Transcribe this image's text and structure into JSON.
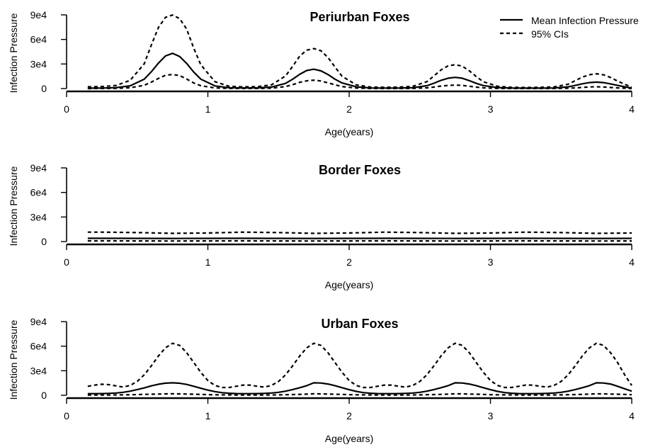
{
  "legend": {
    "position": "top-right",
    "entries": [
      {
        "label": "Mean Infection Pressure",
        "style": "solid"
      },
      {
        "label": "95% CIs",
        "style": "dashed"
      }
    ]
  },
  "chart_data": [
    {
      "type": "line",
      "title": "Periurban Foxes",
      "xlabel": "Age(years)",
      "ylabel": "Infection Pressure",
      "xlim": [
        0,
        4
      ],
      "ylim": [
        0,
        90000
      ],
      "xticks": [
        "0",
        "1",
        "2",
        "3",
        "4"
      ],
      "yticks": [
        "0",
        "3e4",
        "6e4",
        "9e4"
      ],
      "grid": false,
      "x": [
        0.15,
        0.25,
        0.35,
        0.45,
        0.55,
        0.6,
        0.65,
        0.7,
        0.75,
        0.8,
        0.85,
        0.9,
        0.95,
        1.05,
        1.15,
        1.25,
        1.35,
        1.45,
        1.55,
        1.6,
        1.65,
        1.7,
        1.75,
        1.8,
        1.85,
        1.9,
        1.95,
        2.05,
        2.15,
        2.25,
        2.35,
        2.45,
        2.55,
        2.6,
        2.65,
        2.7,
        2.75,
        2.8,
        2.85,
        2.9,
        2.95,
        3.05,
        3.15,
        3.25,
        3.35,
        3.45,
        3.55,
        3.6,
        3.65,
        3.7,
        3.75,
        3.8,
        3.85,
        3.9,
        3.95,
        4.0
      ],
      "series": [
        {
          "name": "Mean Infection Pressure",
          "style": "solid",
          "values": [
            500,
            600,
            1100,
            3400,
            11500,
            20500,
            31100,
            39800,
            43000,
            39200,
            30600,
            20100,
            11500,
            3200,
            1000,
            800,
            900,
            1800,
            6300,
            11400,
            17400,
            22100,
            23600,
            21600,
            17100,
            11400,
            6800,
            2100,
            700,
            600,
            600,
            1000,
            3500,
            6500,
            10000,
            12600,
            13700,
            12600,
            9700,
            6300,
            3600,
            1200,
            600,
            500,
            500,
            700,
            2100,
            3800,
            5800,
            7300,
            7900,
            7300,
            5700,
            3800,
            2200,
            700
          ]
        },
        {
          "name": "95% CIs",
          "style": "dashed",
          "values": [
            2200,
            2400,
            3700,
            10000,
            30300,
            53200,
            74600,
            87000,
            89800,
            85500,
            72500,
            49200,
            29100,
            8400,
            2800,
            2100,
            2300,
            4500,
            15400,
            27100,
            39700,
            46900,
            48800,
            46200,
            37900,
            26300,
            15000,
            4500,
            1800,
            1600,
            1700,
            2800,
            8400,
            15400,
            22800,
            27800,
            29200,
            27400,
            21700,
            14600,
            8300,
            2800,
            1500,
            1300,
            1500,
            2000,
            5300,
            9700,
            13900,
            16900,
            18100,
            16800,
            13500,
            9200,
            5300,
            1700
          ]
        },
        {
          "name": "95% CIs",
          "style": "dashed",
          "values": [
            0,
            100,
            300,
            1000,
            4000,
            7900,
            12400,
            16200,
            17200,
            15800,
            11600,
            6800,
            3500,
            800,
            200,
            200,
            200,
            400,
            2400,
            4700,
            7600,
            9400,
            10200,
            9300,
            6900,
            4700,
            2400,
            600,
            100,
            100,
            100,
            200,
            900,
            1800,
            3000,
            3800,
            4200,
            3900,
            2800,
            1700,
            900,
            200,
            100,
            100,
            100,
            100,
            400,
            800,
            1400,
            2000,
            2200,
            1900,
            1300,
            800,
            400,
            100
          ]
        }
      ]
    },
    {
      "type": "line",
      "title": "Border Foxes",
      "xlabel": "Age(years)",
      "ylabel": "Infection Pressure",
      "xlim": [
        0,
        4
      ],
      "ylim": [
        0,
        90000
      ],
      "xticks": [
        "0",
        "1",
        "2",
        "3",
        "4"
      ],
      "yticks": [
        "0",
        "3e4",
        "6e4",
        "9e4"
      ],
      "grid": false,
      "x": [
        0.15,
        0.25,
        0.5,
        0.75,
        1.0,
        1.25,
        1.5,
        1.75,
        2.0,
        2.25,
        2.5,
        2.75,
        3.0,
        3.25,
        3.5,
        3.75,
        4.0
      ],
      "series": [
        {
          "name": "Mean Infection Pressure",
          "style": "solid",
          "values": [
            4000,
            4000,
            3900,
            3800,
            3900,
            4000,
            3900,
            3800,
            3900,
            4000,
            3900,
            3800,
            3900,
            4000,
            3900,
            3800,
            3900
          ]
        },
        {
          "name": "95% CIs",
          "style": "dashed",
          "values": [
            11500,
            11500,
            11000,
            10000,
            10500,
            11500,
            11000,
            10000,
            10500,
            11500,
            11000,
            10000,
            10500,
            11500,
            11000,
            10000,
            10500
          ]
        },
        {
          "name": "95% CIs",
          "style": "dashed",
          "values": [
            900,
            900,
            800,
            700,
            800,
            900,
            800,
            700,
            800,
            900,
            800,
            700,
            800,
            900,
            800,
            700,
            800
          ]
        }
      ]
    },
    {
      "type": "line",
      "title": "Urban Foxes",
      "xlabel": "Age(years)",
      "ylabel": "Infection Pressure",
      "xlim": [
        0,
        4
      ],
      "ylim": [
        0,
        90000
      ],
      "xticks": [
        "0",
        "1",
        "2",
        "3",
        "4"
      ],
      "yticks": [
        "0",
        "3e4",
        "6e4",
        "9e4"
      ],
      "grid": false,
      "x": [
        0.15,
        0.2,
        0.25,
        0.3,
        0.35,
        0.4,
        0.45,
        0.5,
        0.55,
        0.6,
        0.65,
        0.7,
        0.75,
        0.8,
        0.85,
        0.9,
        0.95,
        1.0,
        1.05,
        1.1,
        1.15,
        1.2,
        1.25,
        1.3,
        1.35,
        1.4,
        1.45,
        1.5,
        1.55,
        1.6,
        1.65,
        1.7,
        1.75,
        1.8,
        1.85,
        1.9,
        1.95,
        2.0,
        2.05,
        2.1,
        2.15,
        2.2,
        2.25,
        2.3,
        2.35,
        2.4,
        2.45,
        2.5,
        2.55,
        2.6,
        2.65,
        2.7,
        2.75,
        2.8,
        2.85,
        2.9,
        2.95,
        3.0,
        3.05,
        3.1,
        3.15,
        3.2,
        3.25,
        3.3,
        3.35,
        3.4,
        3.45,
        3.5,
        3.55,
        3.6,
        3.65,
        3.7,
        3.75,
        3.8,
        3.85,
        3.9,
        3.95,
        4.0
      ],
      "series": [
        {
          "name": "Mean Infection Pressure",
          "style": "solid",
          "values": [
            2000,
            2000,
            2100,
            2300,
            2800,
            3600,
            5000,
            7000,
            9000,
            11500,
            13500,
            14800,
            15200,
            14700,
            13200,
            11000,
            8600,
            6300,
            4500,
            3200,
            2500,
            2100,
            2000,
            2000,
            2100,
            2300,
            2800,
            3600,
            5000,
            7000,
            9300,
            11800,
            15200,
            15000,
            13800,
            11800,
            9300,
            6800,
            4800,
            3300,
            2500,
            2100,
            2000,
            2000,
            2100,
            2300,
            2800,
            3600,
            5000,
            7000,
            9300,
            11800,
            15200,
            15000,
            13800,
            11800,
            9300,
            6800,
            4800,
            3300,
            2500,
            2100,
            2000,
            2000,
            2100,
            2300,
            2800,
            3600,
            5000,
            7000,
            9300,
            11800,
            15200,
            15000,
            13800,
            11000,
            8000,
            5000
          ]
        },
        {
          "name": "95% CIs",
          "style": "dashed",
          "values": [
            11000,
            12500,
            13500,
            13000,
            11500,
            10000,
            12000,
            17000,
            25000,
            36000,
            48000,
            58000,
            63500,
            61000,
            52000,
            40000,
            28000,
            18000,
            12000,
            9500,
            9500,
            11000,
            12500,
            12500,
            11000,
            10000,
            12000,
            17000,
            25000,
            36000,
            48000,
            58000,
            63500,
            61000,
            52000,
            40000,
            28000,
            18000,
            12000,
            9500,
            9500,
            11000,
            12500,
            12500,
            11000,
            10000,
            12000,
            17000,
            25000,
            36000,
            48000,
            58000,
            63500,
            61000,
            52000,
            40000,
            28000,
            18000,
            12000,
            9500,
            9500,
            11000,
            12500,
            12500,
            11000,
            10000,
            12000,
            17000,
            25000,
            36000,
            48000,
            58000,
            63500,
            61000,
            52000,
            40000,
            25000,
            12000
          ]
        },
        {
          "name": "95% CIs",
          "style": "dashed",
          "values": [
            300,
            300,
            300,
            300,
            400,
            500,
            700,
            900,
            1100,
            1300,
            1500,
            1700,
            1800,
            1700,
            1500,
            1300,
            1000,
            800,
            600,
            500,
            400,
            300,
            300,
            300,
            300,
            300,
            400,
            500,
            700,
            900,
            1100,
            1400,
            1800,
            1700,
            1500,
            1300,
            1000,
            800,
            600,
            500,
            400,
            300,
            300,
            300,
            300,
            300,
            400,
            500,
            700,
            900,
            1100,
            1400,
            1800,
            1700,
            1500,
            1300,
            1000,
            800,
            600,
            500,
            400,
            300,
            300,
            300,
            300,
            300,
            400,
            500,
            700,
            900,
            1100,
            1400,
            1800,
            1700,
            1500,
            1300,
            1000,
            800
          ]
        }
      ]
    }
  ]
}
